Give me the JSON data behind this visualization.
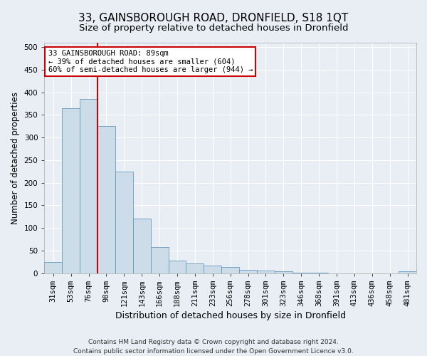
{
  "title": "33, GAINSBOROUGH ROAD, DRONFIELD, S18 1QT",
  "subtitle": "Size of property relative to detached houses in Dronfield",
  "xlabel": "Distribution of detached houses by size in Dronfield",
  "ylabel": "Number of detached properties",
  "footer_line1": "Contains HM Land Registry data © Crown copyright and database right 2024.",
  "footer_line2": "Contains public sector information licensed under the Open Government Licence v3.0.",
  "categories": [
    "31sqm",
    "53sqm",
    "76sqm",
    "98sqm",
    "121sqm",
    "143sqm",
    "166sqm",
    "188sqm",
    "211sqm",
    "233sqm",
    "256sqm",
    "278sqm",
    "301sqm",
    "323sqm",
    "346sqm",
    "368sqm",
    "391sqm",
    "413sqm",
    "436sqm",
    "458sqm",
    "481sqm"
  ],
  "values": [
    25,
    365,
    385,
    325,
    225,
    120,
    58,
    27,
    22,
    17,
    14,
    7,
    5,
    4,
    1,
    1,
    0,
    0,
    0,
    0,
    4
  ],
  "bar_color": "#ccdce8",
  "bar_edge_color": "#6699bb",
  "vline_color": "#cc0000",
  "annotation_line1": "33 GAINSBOROUGH ROAD: 89sqm",
  "annotation_line2": "← 39% of detached houses are smaller (604)",
  "annotation_line3": "60% of semi-detached houses are larger (944) →",
  "annotation_box_color": "#ffffff",
  "annotation_box_edge": "#cc0000",
  "ylim": [
    0,
    510
  ],
  "yticks": [
    0,
    50,
    100,
    150,
    200,
    250,
    300,
    350,
    400,
    450,
    500
  ],
  "title_fontsize": 11,
  "subtitle_fontsize": 9.5,
  "axis_label_fontsize": 8.5,
  "tick_fontsize": 7.5,
  "annotation_fontsize": 7.5,
  "footer_fontsize": 6.5,
  "background_color": "#e8eef4",
  "plot_background": "#e8eef4"
}
